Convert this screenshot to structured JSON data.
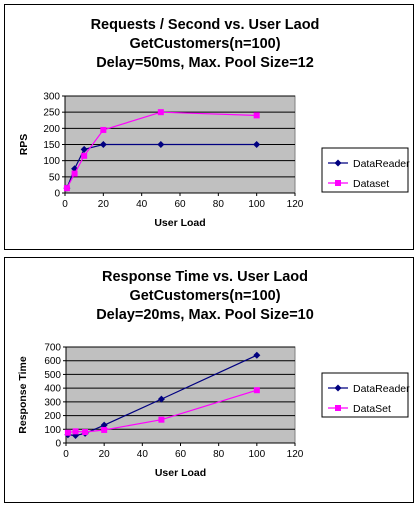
{
  "chart_data": [
    {
      "type": "line",
      "title": [
        "Requests / Second  vs.  User Laod",
        "GetCustomers(n=100)",
        "Delay=50ms, Max. Pool Size=12"
      ],
      "xlabel": "User Load",
      "ylabel": "RPS",
      "xlim": [
        0,
        120
      ],
      "ylim": [
        0,
        300
      ],
      "xticks": [
        0,
        20,
        40,
        60,
        80,
        100,
        120
      ],
      "yticks": [
        0,
        50,
        100,
        150,
        200,
        250,
        300
      ],
      "grid": "horizontal",
      "legend_position": "right",
      "plot_background": "#c0c0c0",
      "series": [
        {
          "name": "DataReader",
          "color": "#000080",
          "marker": "diamond",
          "x": [
            1,
            5,
            10,
            20,
            50,
            100
          ],
          "y": [
            15,
            75,
            135,
            150,
            150,
            150
          ]
        },
        {
          "name": "Dataset",
          "color": "#ff00ff",
          "marker": "square",
          "x": [
            1,
            5,
            10,
            20,
            50,
            100
          ],
          "y": [
            15,
            60,
            115,
            195,
            250,
            240
          ]
        }
      ]
    },
    {
      "type": "line",
      "title": [
        "Response Time  vs.  User Laod",
        "GetCustomers(n=100)",
        "Delay=20ms, Max. Pool Size=10"
      ],
      "xlabel": "User Load",
      "ylabel": "Response Time",
      "xlim": [
        0,
        120
      ],
      "ylim": [
        0,
        700
      ],
      "xticks": [
        0,
        20,
        40,
        60,
        80,
        100,
        120
      ],
      "yticks": [
        0,
        100,
        200,
        300,
        400,
        500,
        600,
        700
      ],
      "grid": "horizontal",
      "legend_position": "right",
      "plot_background": "#c0c0c0",
      "series": [
        {
          "name": "DataReader",
          "color": "#000080",
          "marker": "diamond",
          "x": [
            1,
            5,
            10,
            20,
            50,
            100
          ],
          "y": [
            60,
            55,
            70,
            130,
            320,
            640
          ]
        },
        {
          "name": "DataSet",
          "color": "#ff00ff",
          "marker": "square",
          "x": [
            1,
            5,
            10,
            20,
            50,
            100
          ],
          "y": [
            75,
            85,
            80,
            95,
            170,
            385
          ]
        }
      ]
    }
  ]
}
